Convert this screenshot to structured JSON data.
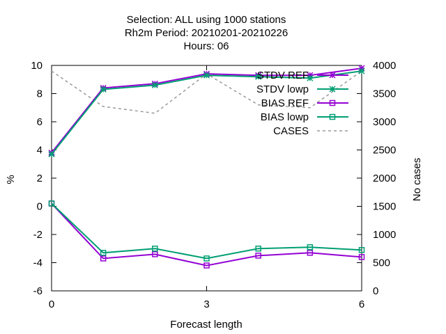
{
  "chart_data": {
    "type": "line",
    "title_lines": [
      "Selection: ALL using  1000 stations",
      "Rh2m   Period: 20210201-20210226",
      "Hours:  06"
    ],
    "xlabel": "Forecast length",
    "ylabel": "%",
    "y2label": "No cases",
    "xlim": [
      0,
      6
    ],
    "ylim": [
      -6,
      10
    ],
    "y2lim": [
      0,
      4000
    ],
    "xticks": [
      "0",
      "3",
      "6"
    ],
    "xtick_values": [
      0,
      3,
      6
    ],
    "yticks": [
      "-6",
      "-4",
      "-2",
      "0",
      "2",
      "4",
      "6",
      "8",
      "10"
    ],
    "ytick_values": [
      -6,
      -4,
      -2,
      0,
      2,
      4,
      6,
      8,
      10
    ],
    "y2ticks": [
      "0",
      "500",
      "1000",
      "1500",
      "2000",
      "2500",
      "3000",
      "3500",
      "4000"
    ],
    "y2tick_values": [
      0,
      500,
      1000,
      1500,
      2000,
      2500,
      3000,
      3500,
      4000
    ],
    "grid": false,
    "legend_position": "top-right",
    "x": [
      0,
      1,
      2,
      3,
      4,
      5,
      6
    ],
    "series": [
      {
        "name": "STDV REF",
        "axis": "y",
        "color": "#9400d3",
        "marker": "star",
        "dashed": false,
        "values": [
          3.8,
          8.4,
          8.7,
          9.4,
          9.3,
          9.3,
          9.8
        ]
      },
      {
        "name": "STDV lowp",
        "axis": "y",
        "color": "#009e73",
        "marker": "star",
        "dashed": false,
        "values": [
          3.7,
          8.3,
          8.6,
          9.3,
          9.2,
          9.1,
          9.6
        ]
      },
      {
        "name": "BIAS REF",
        "axis": "y",
        "color": "#9400d3",
        "marker": "square",
        "dashed": false,
        "values": [
          0.2,
          -3.7,
          -3.4,
          -4.2,
          -3.5,
          -3.3,
          -3.6
        ]
      },
      {
        "name": "BIAS lowp",
        "axis": "y",
        "color": "#009e73",
        "marker": "square",
        "dashed": false,
        "values": [
          0.2,
          -3.3,
          -3.0,
          -3.7,
          -3.0,
          -2.9,
          -3.1
        ]
      },
      {
        "name": "CASES",
        "axis": "y2",
        "color": "#999999",
        "marker": "none",
        "dashed": true,
        "values": [
          3900,
          3270,
          3150,
          3850,
          3300,
          3250,
          3900
        ]
      }
    ]
  }
}
